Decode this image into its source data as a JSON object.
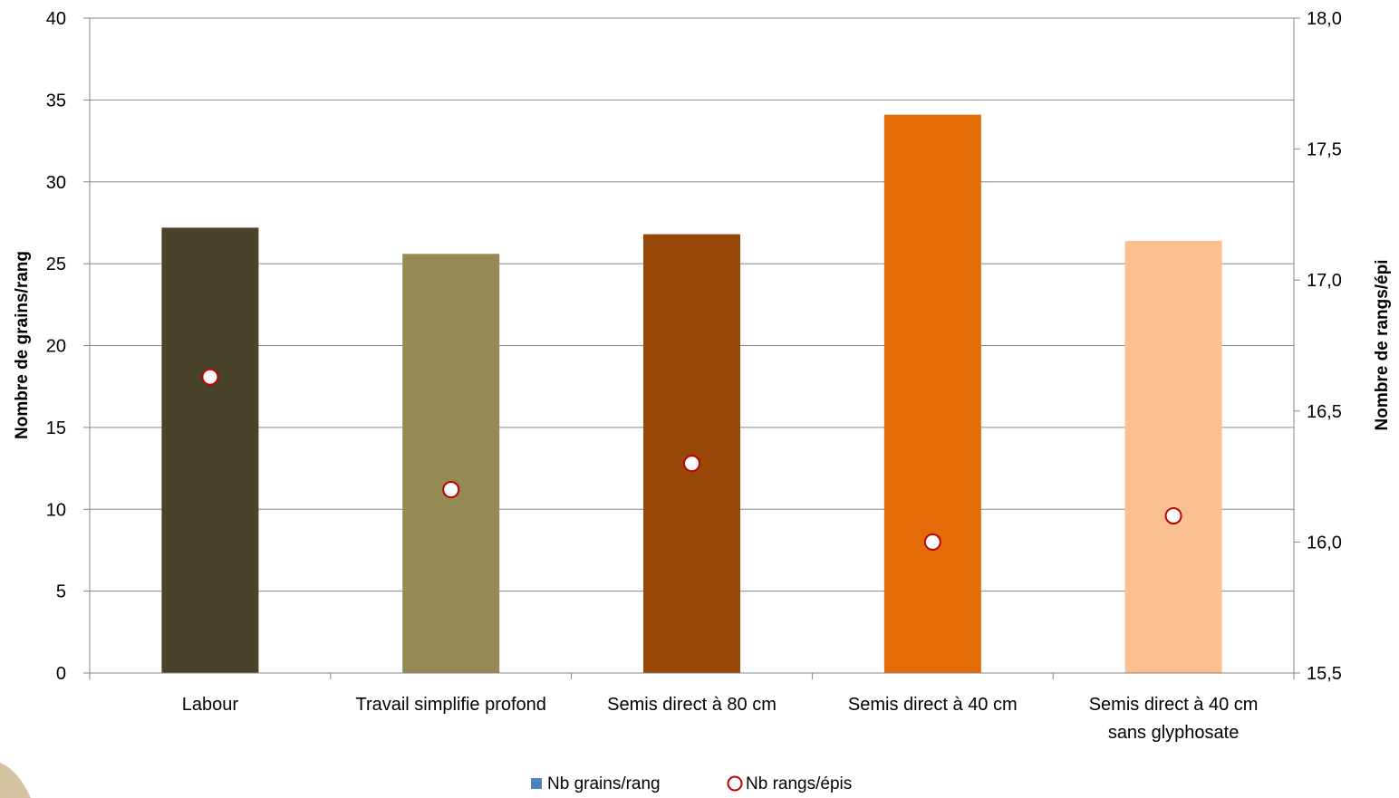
{
  "chart_data": {
    "type": "bar",
    "categories": [
      [
        "Labour"
      ],
      [
        "Travail simplifie profond"
      ],
      [
        "Semis direct à 80 cm"
      ],
      [
        "Semis direct à 40 cm"
      ],
      [
        "Semis direct à 40 cm",
        "sans glyphosate"
      ]
    ],
    "series": [
      {
        "name": "Nb grains/rang",
        "type": "bar",
        "axis": "left",
        "values": [
          27.2,
          25.6,
          26.8,
          34.1,
          26.4
        ],
        "colors": [
          "#4a432c",
          "#948a54",
          "#974706",
          "#e36c09",
          "#fac090"
        ]
      },
      {
        "name": "Nb rangs/épis",
        "type": "scatter",
        "axis": "right",
        "values": [
          16.63,
          16.2,
          16.3,
          16.0,
          16.1
        ],
        "marker_fill": "#ffffff",
        "marker_stroke": "#c00000"
      }
    ],
    "ylabel": "Nombre de grains/rang",
    "y2label": "Nombre de rangs/épi",
    "ylim": [
      0,
      40
    ],
    "y_ticks": [
      0,
      5,
      10,
      15,
      20,
      25,
      30,
      35,
      40
    ],
    "y2lim": [
      15.5,
      18.0
    ],
    "y2_ticks": [
      "15,5",
      "16,0",
      "16,5",
      "17,0",
      "17,5",
      "18,0"
    ],
    "grid": true,
    "legend_position": "bottom",
    "legend_swatch_color": "#4f81bd"
  }
}
